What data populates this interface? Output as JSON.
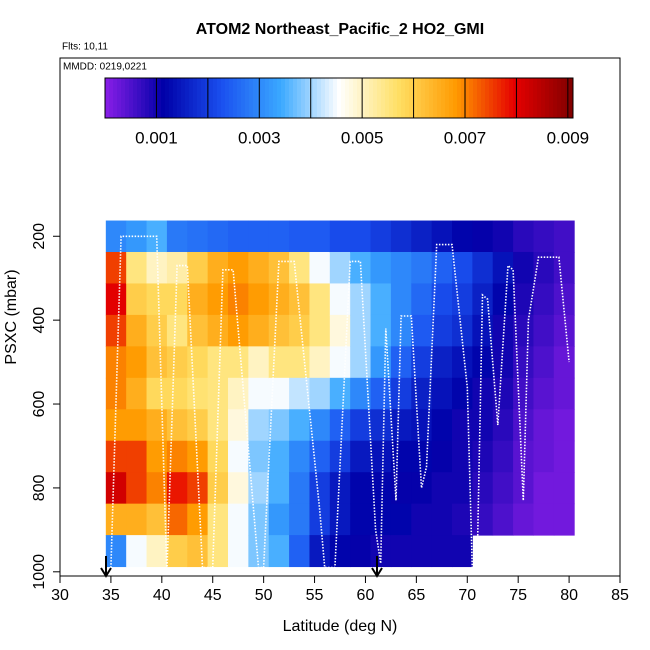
{
  "chart_data": {
    "type": "heatmap",
    "title": "ATOM2 Northeast_Pacific_2 HO2_GMI",
    "subtitle": "Flts: 10,11",
    "annotation": "MMDD: 0219,0221",
    "x_label": "Latitude (deg N)",
    "y_label": "PSXC (mbar)",
    "xlim": [
      30,
      85
    ],
    "ylim": [
      1010,
      -225
    ],
    "xticks": [
      30,
      35,
      40,
      45,
      50,
      55,
      60,
      65,
      70,
      75,
      80,
      85
    ],
    "yticks": [
      200,
      400,
      600,
      800,
      1000
    ],
    "x": [
      35.5,
      37.5,
      39.5,
      41.5,
      43.5,
      45.5,
      47.5,
      49.5,
      51.5,
      53.5,
      55.5,
      57.5,
      59.5,
      61.5,
      63.5,
      65.5,
      67.5,
      69.5,
      71.5,
      73.5,
      75.5,
      77.5,
      79.5
    ],
    "y": [
      200,
      275,
      350,
      425,
      500,
      575,
      650,
      725,
      800,
      875,
      950
    ],
    "values": [
      [
        0.003,
        0.0075,
        0.008,
        0.0075,
        0.007,
        0.007,
        0.0068,
        0.0075,
        0.0082,
        0.0065,
        0.003
      ],
      [
        0.0032,
        0.0055,
        0.006,
        0.0065,
        0.0068,
        0.0065,
        0.0068,
        0.0075,
        0.0075,
        0.0065,
        0.0045
      ],
      [
        0.0035,
        0.005,
        0.0058,
        0.006,
        0.0062,
        0.0058,
        0.0065,
        0.0068,
        0.007,
        0.0062,
        0.005
      ],
      [
        0.0028,
        0.0052,
        0.0058,
        0.0055,
        0.006,
        0.0058,
        0.0062,
        0.007,
        0.0078,
        0.0072,
        0.006
      ],
      [
        0.0027,
        0.006,
        0.0065,
        0.0062,
        0.0058,
        0.0056,
        0.006,
        0.0068,
        0.0075,
        0.0068,
        0.0062
      ],
      [
        0.0026,
        0.0065,
        0.0068,
        0.0065,
        0.0055,
        0.0055,
        0.0055,
        0.0058,
        0.006,
        0.0055,
        0.0055
      ],
      [
        0.0025,
        0.0068,
        0.007,
        0.0068,
        0.0055,
        0.005,
        0.0048,
        0.0045,
        0.0048,
        0.0045,
        0.0045
      ],
      [
        0.0025,
        0.0065,
        0.0068,
        0.0065,
        0.005,
        0.0045,
        0.004,
        0.0038,
        0.004,
        0.0038,
        0.0038
      ],
      [
        0.0025,
        0.0062,
        0.0065,
        0.0062,
        0.0055,
        0.0045,
        0.0038,
        0.0035,
        0.0035,
        0.0032,
        0.0035
      ],
      [
        0.0024,
        0.0055,
        0.0062,
        0.006,
        0.0055,
        0.0042,
        0.0035,
        0.003,
        0.0028,
        0.0028,
        0.0025
      ],
      [
        0.0024,
        0.0045,
        0.0055,
        0.0055,
        0.005,
        0.004,
        0.003,
        0.0025,
        0.002,
        0.002,
        0.0015
      ],
      [
        0.0022,
        0.004,
        0.0045,
        0.0048,
        0.0045,
        0.0035,
        0.0025,
        0.002,
        0.0015,
        0.0015,
        0.0012
      ],
      [
        0.0022,
        0.0035,
        0.004,
        0.004,
        0.004,
        0.003,
        0.002,
        0.0015,
        0.0012,
        0.0012,
        0.0011
      ],
      [
        0.002,
        0.0032,
        0.0035,
        0.0035,
        0.0032,
        0.0025,
        0.0018,
        0.0014,
        0.0012,
        0.0012,
        0.001
      ],
      [
        0.0018,
        0.003,
        0.003,
        0.003,
        0.0025,
        0.002,
        0.0015,
        0.0012,
        0.0011,
        0.0012,
        0.001
      ],
      [
        0.0016,
        0.0028,
        0.0026,
        0.0024,
        0.002,
        0.0016,
        0.0014,
        0.0012,
        0.0011,
        0.001,
        0.001
      ],
      [
        0.0014,
        0.0025,
        0.0022,
        0.002,
        0.0016,
        0.0014,
        0.0012,
        0.0011,
        0.001,
        0.001,
        0.001
      ],
      [
        0.0012,
        0.0022,
        0.002,
        0.0018,
        0.0014,
        0.0012,
        0.001,
        0.001,
        0.001,
        0.0009,
        0.001
      ],
      [
        0.0011,
        0.0018,
        0.0016,
        0.0014,
        0.0012,
        0.001,
        0.001,
        0.0009,
        0.0008,
        0.0007,
        null
      ],
      [
        0.001,
        0.0014,
        0.0012,
        0.001,
        0.001,
        0.0009,
        0.0008,
        0.0007,
        0.0006,
        0.0005,
        null
      ],
      [
        0.0008,
        0.001,
        0.0009,
        0.0008,
        0.0007,
        0.0006,
        0.0005,
        0.0004,
        0.0004,
        0.0003,
        null
      ],
      [
        0.0007,
        0.0008,
        0.0007,
        0.0006,
        0.0005,
        0.0004,
        0.0003,
        0.0003,
        0.0002,
        0.0002,
        null
      ],
      [
        0.0006,
        0.0006,
        0.0005,
        0.0004,
        0.0003,
        0.0003,
        0.0002,
        0.0002,
        0.0002,
        0.0002,
        null
      ]
    ],
    "colorbar_lim": [
      0,
      0.0091
    ],
    "colorbar_ticks": [
      0.001,
      0.003,
      0.005,
      0.007,
      0.009
    ],
    "colorbar_lines": [
      0.001,
      0.002,
      0.003,
      0.004,
      0.005,
      0.006,
      0.007,
      0.008,
      0.009
    ],
    "colors": [
      "#8a1ee8",
      "#0000a8",
      "#1a50f0",
      "#3aa8ff",
      "#ffffff",
      "#ffe066",
      "#ff9a00",
      "#e60000",
      "#800000"
    ],
    "track": {
      "color": "#ffffff",
      "x": [
        35,
        36,
        39.5,
        40.5,
        41.5,
        42.5,
        44,
        45,
        46,
        47,
        49.5,
        50,
        51.5,
        53,
        55.5,
        56,
        57,
        58.5,
        59.5,
        61,
        61.5,
        62,
        63,
        63.5,
        64.5,
        65.5,
        66,
        67,
        68.5,
        70,
        70.5,
        71,
        71.5,
        72,
        73,
        74,
        74.5,
        75.5,
        76,
        77,
        79,
        80
      ],
      "y": [
        990,
        200,
        200,
        1000,
        270,
        270,
        990,
        990,
        280,
        280,
        990,
        990,
        260,
        260,
        850,
        990,
        990,
        260,
        260,
        900,
        980,
        420,
        830,
        390,
        390,
        800,
        750,
        220,
        220,
        560,
        1000,
        940,
        340,
        350,
        650,
        270,
        280,
        830,
        400,
        250,
        250,
        500
      ]
    }
  }
}
